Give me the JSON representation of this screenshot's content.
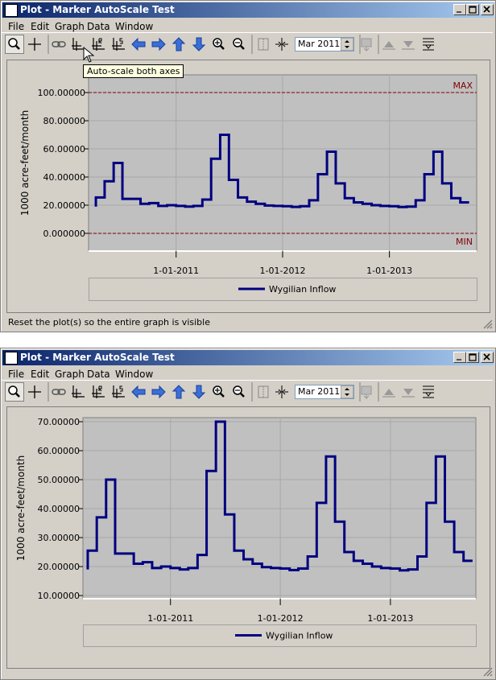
{
  "windows": [
    {
      "title": "Plot - Marker AutoScale Test",
      "menu": [
        "File",
        "Edit",
        "Graph",
        "Data",
        "Window"
      ],
      "date_field": "Mar 2011",
      "tooltip": "Auto-scale both axes",
      "status": "Reset the plot(s) so the entire graph is visible"
    },
    {
      "title": "Plot - Marker AutoScale Test",
      "menu": [
        "File",
        "Edit",
        "Graph",
        "Data",
        "Window"
      ],
      "date_field": "Mar 2011"
    }
  ],
  "chart_data": [
    {
      "type": "line",
      "y_label": "1000 acre-feet/month",
      "grid": true,
      "x": [
        "2010-04",
        "2010-05",
        "2010-06",
        "2010-07",
        "2010-08",
        "2010-09",
        "2010-10",
        "2010-11",
        "2010-12",
        "2011-01",
        "2011-02",
        "2011-03",
        "2011-04",
        "2011-05",
        "2011-06",
        "2011-07",
        "2011-08",
        "2011-09",
        "2011-10",
        "2011-11",
        "2011-12",
        "2012-01",
        "2012-02",
        "2012-03",
        "2012-04",
        "2012-05",
        "2012-06",
        "2012-07",
        "2012-08",
        "2012-09",
        "2012-10",
        "2012-11",
        "2012-12",
        "2013-01",
        "2013-02",
        "2013-03",
        "2013-04",
        "2013-05",
        "2013-06",
        "2013-07",
        "2013-08",
        "2013-09",
        "2013-10"
      ],
      "series": [
        {
          "name": "Wygilian Inflow",
          "color": "#000080",
          "values": [
            19,
            25.5,
            37,
            50,
            24.5,
            24.5,
            21,
            21.5,
            19.5,
            20,
            19.5,
            19,
            19.5,
            24,
            53,
            70,
            38,
            25.5,
            22.5,
            21,
            19.8,
            19.5,
            19.3,
            18.8,
            19.3,
            23.5,
            42,
            58,
            35.5,
            25,
            22,
            21,
            20,
            19.5,
            19.3,
            18.7,
            19,
            23.5,
            42,
            58,
            35.5,
            25,
            22
          ]
        }
      ],
      "xlim": [
        "2010-03-07",
        "2013-10-27"
      ],
      "xticks": [
        {
          "value": "2011-01",
          "label": "1-01-2011"
        },
        {
          "value": "2012-01",
          "label": "1-01-2012"
        },
        {
          "value": "2013-01",
          "label": "1-01-2013"
        }
      ],
      "ylim": [
        -12.6,
        112.6
      ],
      "yticks": [
        {
          "value": 0,
          "label": "0.000000"
        },
        {
          "value": 20,
          "label": "20.00000"
        },
        {
          "value": 40,
          "label": "40.00000"
        },
        {
          "value": 60,
          "label": "60.00000"
        },
        {
          "value": 80,
          "label": "80.00000"
        },
        {
          "value": 100,
          "label": "100.00000"
        }
      ],
      "reference_lines": [
        {
          "value": 100,
          "label": "MAX",
          "color": "#800000"
        },
        {
          "value": 0,
          "label": "MIN",
          "color": "#800000"
        }
      ]
    },
    {
      "type": "line",
      "y_label": "1000 acre-feet/month",
      "grid": true,
      "x": [
        "2010-04",
        "2010-05",
        "2010-06",
        "2010-07",
        "2010-08",
        "2010-09",
        "2010-10",
        "2010-11",
        "2010-12",
        "2011-01",
        "2011-02",
        "2011-03",
        "2011-04",
        "2011-05",
        "2011-06",
        "2011-07",
        "2011-08",
        "2011-09",
        "2011-10",
        "2011-11",
        "2011-12",
        "2012-01",
        "2012-02",
        "2012-03",
        "2012-04",
        "2012-05",
        "2012-06",
        "2012-07",
        "2012-08",
        "2012-09",
        "2012-10",
        "2012-11",
        "2012-12",
        "2013-01",
        "2013-02",
        "2013-03",
        "2013-04",
        "2013-05",
        "2013-06",
        "2013-07",
        "2013-08",
        "2013-09",
        "2013-10"
      ],
      "series": [
        {
          "name": "Wygilian Inflow",
          "color": "#000080",
          "values": [
            19,
            25.5,
            37,
            50,
            24.5,
            24.5,
            21,
            21.5,
            19.5,
            20,
            19.5,
            19,
            19.5,
            24,
            53,
            70,
            38,
            25.5,
            22.5,
            21,
            19.8,
            19.5,
            19.3,
            18.8,
            19.3,
            23.5,
            42,
            58,
            35.5,
            25,
            22,
            21,
            20,
            19.5,
            19.3,
            18.7,
            19,
            23.5,
            42,
            58,
            35.5,
            25,
            22
          ]
        }
      ],
      "xlim": [
        "2010-03-16",
        "2013-10-12"
      ],
      "xticks": [
        {
          "value": "2011-01",
          "label": "1-01-2011"
        },
        {
          "value": "2012-01",
          "label": "1-01-2012"
        },
        {
          "value": "2013-01",
          "label": "1-01-2013"
        }
      ],
      "ylim": [
        8.9,
        71.4
      ],
      "yticks": [
        {
          "value": 10,
          "label": "10.00000"
        },
        {
          "value": 20,
          "label": "20.00000"
        },
        {
          "value": 30,
          "label": "30.00000"
        },
        {
          "value": 40,
          "label": "40.00000"
        },
        {
          "value": 50,
          "label": "50.00000"
        },
        {
          "value": 60,
          "label": "60.00000"
        },
        {
          "value": 70,
          "label": "70.00000"
        }
      ]
    }
  ]
}
